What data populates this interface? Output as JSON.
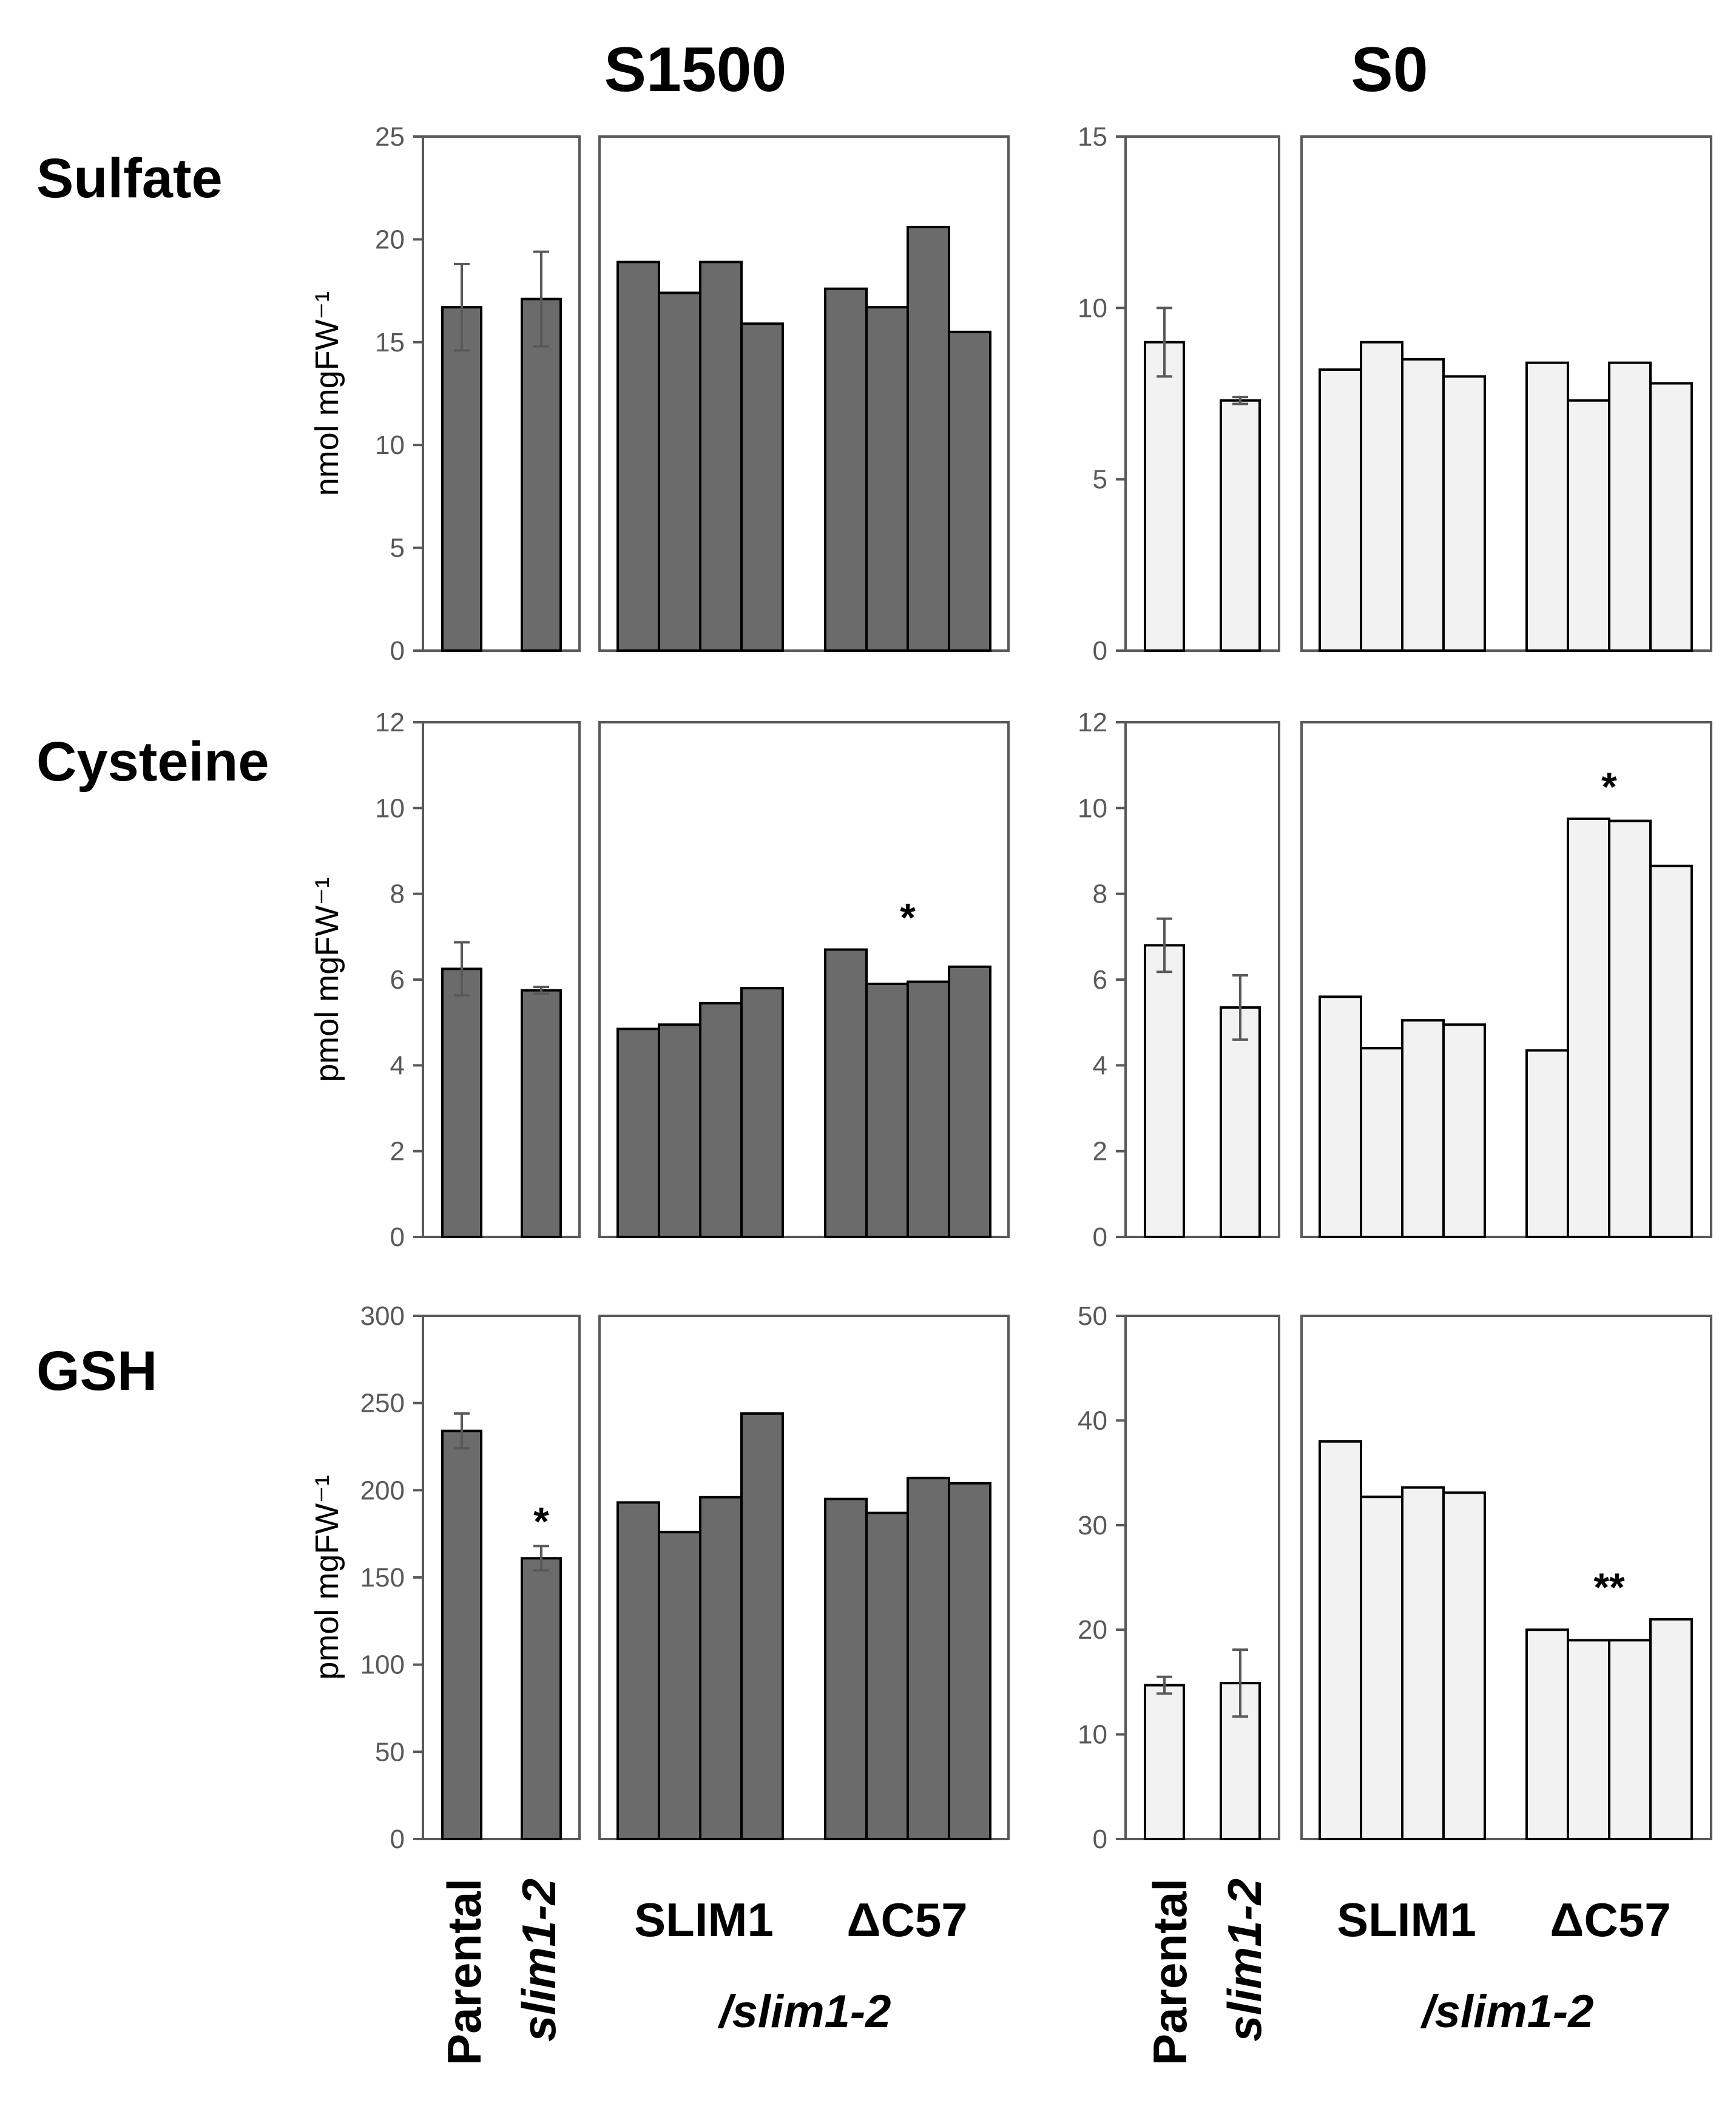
{
  "columns": [
    {
      "title": "S1500",
      "bar_color": "#6b6b6b"
    },
    {
      "title": "S0",
      "bar_color": "#f2f2f2"
    }
  ],
  "rows": [
    {
      "title": "Sulfate",
      "ylabel": "nmol mgFW⁻¹"
    },
    {
      "title": "Cysteine",
      "ylabel": "pmol mgFW⁻¹"
    },
    {
      "title": "GSH",
      "ylabel": "pmol mgFW⁻¹"
    }
  ],
  "x_labels": {
    "parental": "Parental",
    "mutant": "slim1-2",
    "group1": "SLIM1",
    "group2": "ΔC57",
    "sub": "/slim1-2"
  },
  "chart_data": [
    {
      "type": "bar",
      "row": "Sulfate",
      "condition": "S1500",
      "ylabel": "nmol mgFW⁻¹",
      "ylim": [
        0,
        25
      ],
      "ticks": [
        0,
        5,
        10,
        15,
        20,
        25
      ],
      "categories": [
        "Parental",
        "slim1-2"
      ],
      "values": [
        16.7,
        17.1
      ],
      "errors": [
        2.1,
        2.3
      ],
      "marks": [
        "",
        ""
      ],
      "groups": [
        {
          "name": "SLIM1",
          "values": [
            18.9,
            17.4,
            18.9,
            15.9
          ],
          "mark": ""
        },
        {
          "name": "ΔC57",
          "values": [
            17.6,
            16.7,
            20.6,
            15.5
          ],
          "mark": ""
        }
      ]
    },
    {
      "type": "bar",
      "row": "Sulfate",
      "condition": "S0",
      "ylabel": "",
      "ylim": [
        0,
        15
      ],
      "ticks": [
        0,
        5,
        10,
        15
      ],
      "categories": [
        "Parental",
        "slim1-2"
      ],
      "values": [
        9.0,
        7.3
      ],
      "errors": [
        1.0,
        0.1
      ],
      "marks": [
        "",
        ""
      ],
      "groups": [
        {
          "name": "SLIM1",
          "values": [
            8.2,
            9.0,
            8.5,
            8.0
          ],
          "mark": ""
        },
        {
          "name": "ΔC57",
          "values": [
            8.4,
            7.3,
            8.4,
            7.8
          ],
          "mark": ""
        }
      ]
    },
    {
      "type": "bar",
      "row": "Cysteine",
      "condition": "S1500",
      "ylabel": "pmol mgFW⁻¹",
      "ylim": [
        0,
        12
      ],
      "ticks": [
        0,
        2,
        4,
        6,
        8,
        10,
        12
      ],
      "categories": [
        "Parental",
        "slim1-2"
      ],
      "values": [
        6.25,
        5.75
      ],
      "errors": [
        0.62,
        0.08
      ],
      "marks": [
        "",
        ""
      ],
      "groups": [
        {
          "name": "SLIM1",
          "values": [
            4.85,
            4.95,
            5.45,
            5.8
          ],
          "mark": ""
        },
        {
          "name": "ΔC57",
          "values": [
            6.7,
            5.9,
            5.95,
            6.3
          ],
          "mark": "*"
        }
      ]
    },
    {
      "type": "bar",
      "row": "Cysteine",
      "condition": "S0",
      "ylabel": "",
      "ylim": [
        0,
        12
      ],
      "ticks": [
        0,
        2,
        4,
        6,
        8,
        10,
        12
      ],
      "categories": [
        "Parental",
        "slim1-2"
      ],
      "values": [
        6.8,
        5.35
      ],
      "errors": [
        0.62,
        0.75
      ],
      "marks": [
        "",
        ""
      ],
      "groups": [
        {
          "name": "SLIM1",
          "values": [
            5.6,
            4.4,
            5.05,
            4.95
          ],
          "mark": ""
        },
        {
          "name": "ΔC57",
          "values": [
            4.35,
            9.75,
            9.7,
            8.65
          ],
          "mark": "*"
        }
      ]
    },
    {
      "type": "bar",
      "row": "GSH",
      "condition": "S1500",
      "ylabel": "pmol mgFW⁻¹",
      "ylim": [
        0,
        300
      ],
      "ticks": [
        0,
        50,
        100,
        150,
        200,
        250,
        300
      ],
      "categories": [
        "Parental",
        "slim1-2"
      ],
      "values": [
        234,
        161
      ],
      "errors": [
        10,
        7
      ],
      "marks": [
        "",
        "*"
      ],
      "groups": [
        {
          "name": "SLIM1",
          "values": [
            193,
            176,
            196,
            244
          ],
          "mark": ""
        },
        {
          "name": "ΔC57",
          "values": [
            195,
            187,
            207,
            204
          ],
          "mark": ""
        }
      ]
    },
    {
      "type": "bar",
      "row": "GSH",
      "condition": "S0",
      "ylabel": "",
      "ylim": [
        0,
        50
      ],
      "ticks": [
        0,
        10,
        20,
        30,
        40,
        50
      ],
      "categories": [
        "Parental",
        "slim1-2"
      ],
      "values": [
        14.7,
        14.9
      ],
      "errors": [
        0.8,
        3.2
      ],
      "marks": [
        "",
        ""
      ],
      "groups": [
        {
          "name": "SLIM1",
          "values": [
            38.0,
            32.7,
            33.6,
            33.1
          ],
          "mark": ""
        },
        {
          "name": "ΔC57",
          "values": [
            20.0,
            19.0,
            19.0,
            21.0
          ],
          "mark": "**"
        }
      ]
    }
  ]
}
